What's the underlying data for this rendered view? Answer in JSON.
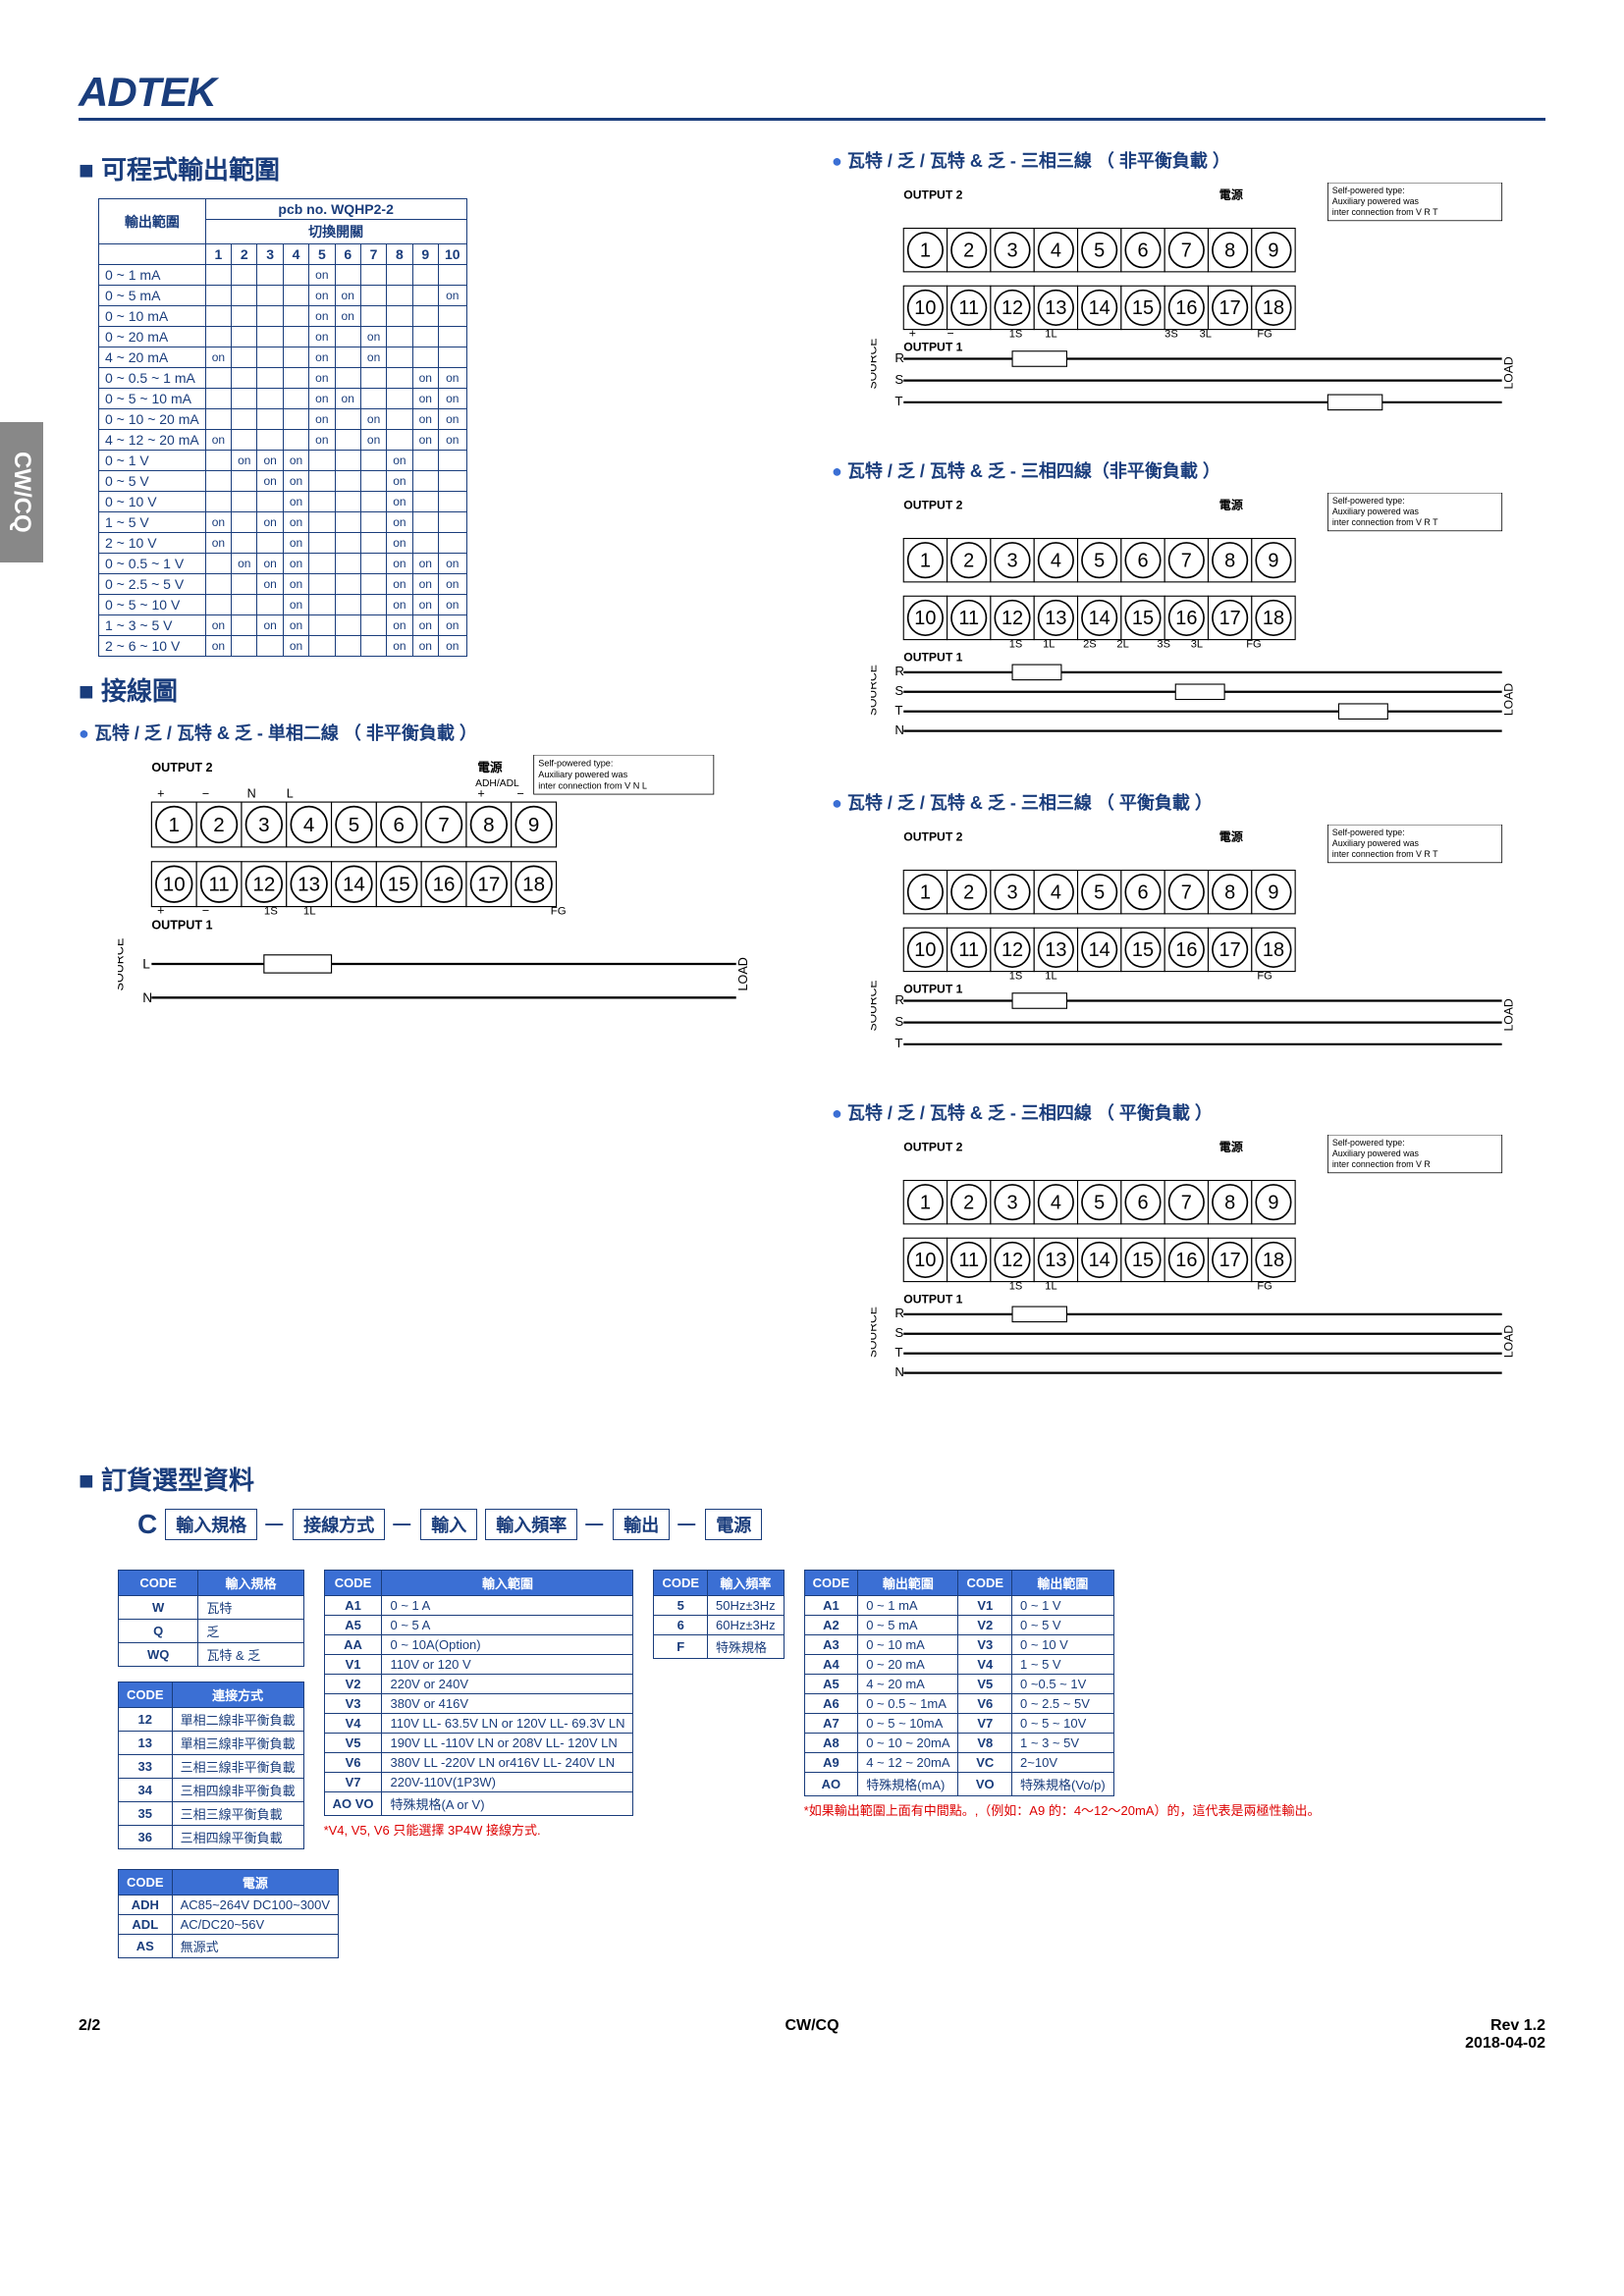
{
  "logo": "ADTEK",
  "side_tab": "CW/CQ",
  "sections": {
    "programmable": "可程式輸出範圍",
    "wiring": "接線圖",
    "ordering": "訂貨選型資料"
  },
  "switch_table": {
    "pcb_header": "pcb no. WQHP2-2",
    "range_header": "輸出範圍",
    "switch_header": "切換開關",
    "cols": [
      "1",
      "2",
      "3",
      "4",
      "5",
      "6",
      "7",
      "8",
      "9",
      "10"
    ],
    "rows": [
      {
        "r": "0 ~ 1 mA",
        "c": [
          "",
          "",
          "",
          "",
          "on",
          "",
          "",
          "",
          "",
          ""
        ]
      },
      {
        "r": "0 ~ 5 mA",
        "c": [
          "",
          "",
          "",
          "",
          "on",
          "on",
          "",
          "",
          "",
          "on"
        ]
      },
      {
        "r": "0 ~ 10 mA",
        "c": [
          "",
          "",
          "",
          "",
          "on",
          "on",
          "",
          "",
          "",
          ""
        ]
      },
      {
        "r": "0 ~ 20 mA",
        "c": [
          "",
          "",
          "",
          "",
          "on",
          "",
          "on",
          "",
          "",
          ""
        ]
      },
      {
        "r": "4 ~ 20 mA",
        "c": [
          "on",
          "",
          "",
          "",
          "on",
          "",
          "on",
          "",
          "",
          ""
        ]
      },
      {
        "r": "0 ~ 0.5 ~ 1 mA",
        "c": [
          "",
          "",
          "",
          "",
          "on",
          "",
          "",
          "",
          "on",
          "on"
        ]
      },
      {
        "r": "0 ~ 5 ~ 10 mA",
        "c": [
          "",
          "",
          "",
          "",
          "on",
          "on",
          "",
          "",
          "on",
          "on"
        ]
      },
      {
        "r": "0 ~ 10 ~ 20 mA",
        "c": [
          "",
          "",
          "",
          "",
          "on",
          "",
          "on",
          "",
          "on",
          "on"
        ]
      },
      {
        "r": "4 ~ 12 ~ 20 mA",
        "c": [
          "on",
          "",
          "",
          "",
          "on",
          "",
          "on",
          "",
          "on",
          "on"
        ]
      },
      {
        "r": "0 ~ 1 V",
        "c": [
          "",
          "on",
          "on",
          "on",
          "",
          "",
          "",
          "on",
          "",
          ""
        ]
      },
      {
        "r": "0 ~ 5 V",
        "c": [
          "",
          "",
          "on",
          "on",
          "",
          "",
          "",
          "on",
          "",
          ""
        ]
      },
      {
        "r": "0 ~ 10 V",
        "c": [
          "",
          "",
          "",
          "on",
          "",
          "",
          "",
          "on",
          "",
          ""
        ]
      },
      {
        "r": "1 ~ 5 V",
        "c": [
          "on",
          "",
          "on",
          "on",
          "",
          "",
          "",
          "on",
          "",
          ""
        ]
      },
      {
        "r": "2 ~ 10 V",
        "c": [
          "on",
          "",
          "",
          "on",
          "",
          "",
          "",
          "on",
          "",
          ""
        ]
      },
      {
        "r": "0 ~ 0.5 ~ 1 V",
        "c": [
          "",
          "on",
          "on",
          "on",
          "",
          "",
          "",
          "on",
          "on",
          "on"
        ]
      },
      {
        "r": "0 ~ 2.5 ~ 5 V",
        "c": [
          "",
          "",
          "on",
          "on",
          "",
          "",
          "",
          "on",
          "on",
          "on"
        ]
      },
      {
        "r": "0 ~ 5 ~ 10 V",
        "c": [
          "",
          "",
          "",
          "on",
          "",
          "",
          "",
          "on",
          "on",
          "on"
        ]
      },
      {
        "r": "1 ~ 3 ~ 5 V",
        "c": [
          "on",
          "",
          "on",
          "on",
          "",
          "",
          "",
          "on",
          "on",
          "on"
        ]
      },
      {
        "r": "2 ~ 6 ~ 10 V",
        "c": [
          "on",
          "",
          "",
          "on",
          "",
          "",
          "",
          "on",
          "on",
          "on"
        ]
      }
    ]
  },
  "wiring_titles": {
    "w1": "瓦特 / 乏 / 瓦特 & 乏 - 単相二線 （ 非平衡負載 ）",
    "w2": "瓦特 / 乏 / 瓦特 & 乏 - 三相三線 （ 非平衡負載 ）",
    "w3": "瓦特 / 乏 / 瓦特 & 乏 - 三相四線（非平衡負載 ）",
    "w4": "瓦特 / 乏 / 瓦特 & 乏 - 三相三線 （ 平衡負載 ）",
    "w5": "瓦特 / 乏 / 瓦特 & 乏 - 三相四線 （ 平衡負載 ）"
  },
  "diagram_labels": {
    "output1": "OUTPUT 1",
    "output2": "OUTPUT 2",
    "power": "電源",
    "adh": "ADH/ADL",
    "source": "SOURCE",
    "load": "LOAD",
    "self_powered": "Self-powered type:\nAuxiliary powered was inter connection from V",
    "fg": "FG",
    "plus": "+",
    "minus": "−",
    "n": "N",
    "l": "L",
    "r": "R",
    "s": "S",
    "t": "T",
    "s1": "1S",
    "l1": "1L",
    "s2": "2S",
    "l2": "2L",
    "s3": "3S",
    "l3": "3L"
  },
  "order": {
    "prefix": "C",
    "flow": [
      "輸入規格",
      "接線方式",
      "輸入",
      "輸入頻率",
      "輸出",
      "電源"
    ],
    "input_spec": {
      "title": "輸入規格",
      "rows": [
        [
          "W",
          "瓦特"
        ],
        [
          "Q",
          "乏"
        ],
        [
          "WQ",
          "瓦特 & 乏"
        ]
      ]
    },
    "connection": {
      "title": "連接方式",
      "rows": [
        [
          "12",
          "單相二線非平衡負載"
        ],
        [
          "13",
          "單相三線非平衡負載"
        ],
        [
          "33",
          "三相三線非平衡負載"
        ],
        [
          "34",
          "三相四線非平衡負載"
        ],
        [
          "35",
          "三相三線平衡負載"
        ],
        [
          "36",
          "三相四線平衡負載"
        ]
      ]
    },
    "input_range": {
      "title": "輸入範圍",
      "rows": [
        [
          "A1",
          "0 ~ 1 A"
        ],
        [
          "A5",
          "0 ~ 5 A"
        ],
        [
          "AA",
          "0 ~ 10A(Option)"
        ],
        [
          "V1",
          "110V or 120 V"
        ],
        [
          "V2",
          "220V or 240V"
        ],
        [
          "V3",
          "380V or 416V"
        ],
        [
          "V4",
          "110V LL- 63.5V LN or 120V LL- 69.3V LN"
        ],
        [
          "V5",
          "190V LL -110V LN or 208V LL- 120V LN"
        ],
        [
          "V6",
          "380V LL -220V LN or416V LL- 240V LN"
        ],
        [
          "V7",
          "220V-110V(1P3W)"
        ],
        [
          "AO VO",
          "特殊規格(A or V)"
        ]
      ],
      "note": "*V4, V5, V6 只能選擇 3P4W 接線方式."
    },
    "freq": {
      "title": "輸入頻率",
      "rows": [
        [
          "5",
          "50Hz±3Hz"
        ],
        [
          "6",
          "60Hz±3Hz"
        ],
        [
          "F",
          "特殊規格"
        ]
      ]
    },
    "output_range": {
      "title": "輸出範圍",
      "cols_a": [
        [
          "A1",
          "0 ~ 1 mA"
        ],
        [
          "A2",
          "0 ~ 5 mA"
        ],
        [
          "A3",
          "0 ~ 10 mA"
        ],
        [
          "A4",
          "0 ~ 20 mA"
        ],
        [
          "A5",
          "4 ~ 20 mA"
        ],
        [
          "A6",
          "0 ~ 0.5 ~ 1mA"
        ],
        [
          "A7",
          "0 ~ 5 ~ 10mA"
        ],
        [
          "A8",
          "0 ~ 10 ~ 20mA"
        ],
        [
          "A9",
          "4 ~ 12 ~ 20mA"
        ],
        [
          "AO",
          "特殊規格(mA)"
        ]
      ],
      "cols_v": [
        [
          "V1",
          "0 ~ 1 V"
        ],
        [
          "V2",
          "0 ~ 5 V"
        ],
        [
          "V3",
          "0 ~ 10 V"
        ],
        [
          "V4",
          "1 ~ 5 V"
        ],
        [
          "V5",
          "0 ~0.5 ~ 1V"
        ],
        [
          "V6",
          "0 ~ 2.5 ~ 5V"
        ],
        [
          "V7",
          "0 ~ 5 ~ 10V"
        ],
        [
          "V8",
          "1 ~ 3 ~ 5V"
        ],
        [
          "VC",
          "2~10V"
        ],
        [
          "VO",
          "特殊規格(Vo/p)"
        ]
      ],
      "note": "*如果輸出範圍上面有中間點。,（例如：A9 的：4～12～20mA）的，這代表是兩極性輸出。"
    },
    "power": {
      "title": "電源",
      "rows": [
        [
          "ADH",
          "AC85~264V DC100~300V"
        ],
        [
          "ADL",
          "AC/DC20~56V"
        ],
        [
          "AS",
          "無源式"
        ]
      ]
    }
  },
  "footer": {
    "page": "2/2",
    "model": "CW/CQ",
    "rev": "Rev 1.2",
    "date": "2018-04-02"
  }
}
